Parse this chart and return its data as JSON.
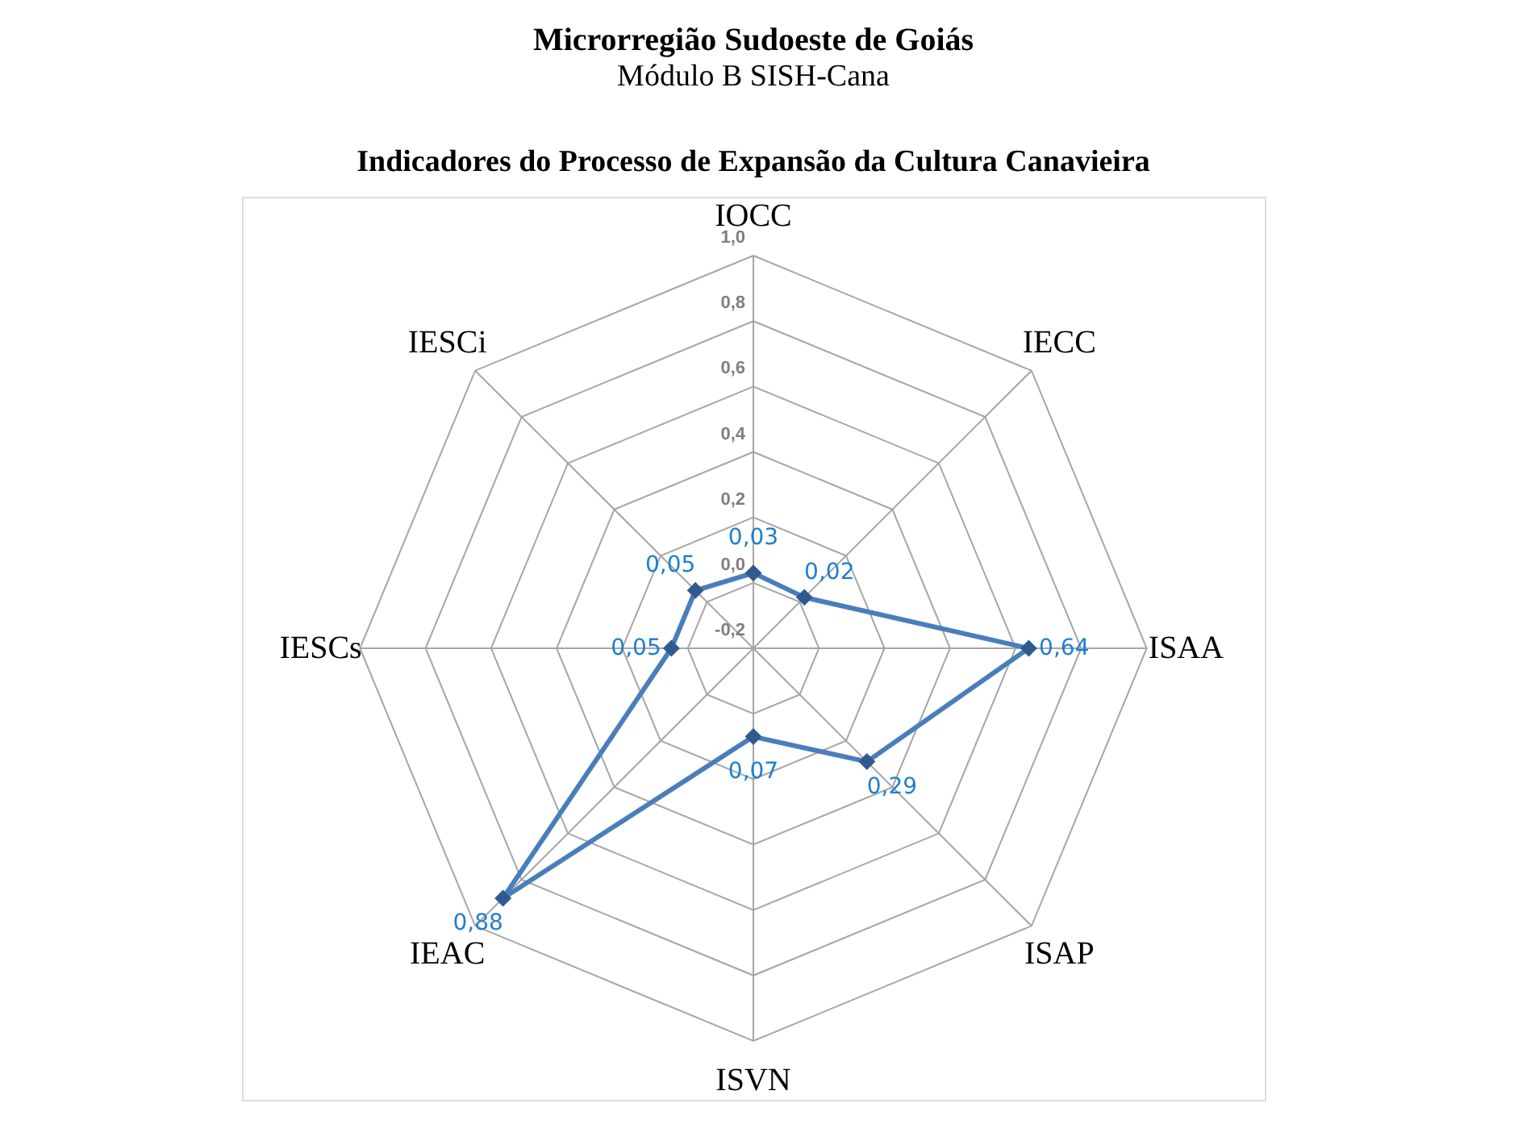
{
  "chart_data": {
    "type": "radar",
    "title": "Microrregião Sudoeste de Goiás",
    "subtitle": "Módulo B SISH-Cana",
    "annotations": [
      "Indicadores do Processo de Expansão da Cultura Canavieira"
    ],
    "categories": [
      "IOCC",
      "IECC",
      "ISAA",
      "ISAP",
      "ISVN",
      "IEAC",
      "IESCs",
      "IESCi"
    ],
    "series": [
      {
        "color": "#4a7ebb",
        "values": [
          0.03,
          0.02,
          0.64,
          0.29,
          0.07,
          0.88,
          0.05,
          0.05
        ],
        "value_labels": [
          "0,03",
          "0,02",
          "0,64",
          "0,29",
          "0,07",
          "0,88",
          "0,05",
          "0,05"
        ]
      }
    ],
    "ylim": [
      -0.2,
      1.0
    ],
    "yticks": [
      {
        "value": -0.2,
        "label": "-0,2"
      },
      {
        "value": 0,
        "label": "0,0"
      },
      {
        "value": 0.2,
        "label": "0,2"
      },
      {
        "value": 0.4,
        "label": "0,4"
      },
      {
        "value": 0.6,
        "label": "0,6"
      },
      {
        "value": 0.8,
        "label": "0,8"
      },
      {
        "value": 1.0,
        "label": "1,0"
      }
    ],
    "grid": true,
    "marker": "diamond"
  }
}
